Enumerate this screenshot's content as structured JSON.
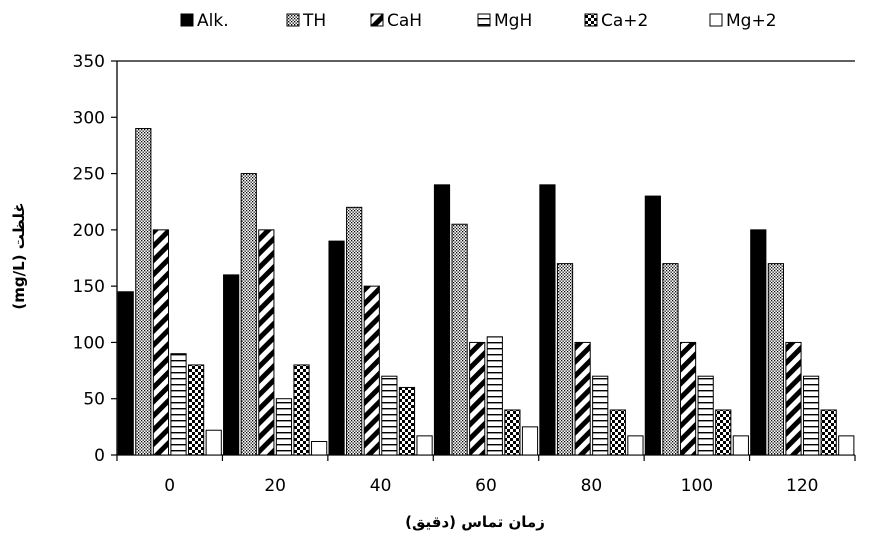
{
  "chart_data": {
    "type": "bar",
    "xlabel": "زمان تماس (دقیق)",
    "ylabel": "(mg/L) غلظت",
    "ylim": [
      0,
      350
    ],
    "yticks": [
      0,
      50,
      100,
      150,
      200,
      250,
      300,
      350
    ],
    "categories": [
      "0",
      "20",
      "40",
      "60",
      "80",
      "100",
      "120"
    ],
    "legend_position": "top",
    "grid": false,
    "series": [
      {
        "name": "Alk.",
        "pattern": "solid",
        "values": [
          145,
          160,
          190,
          240,
          240,
          230,
          200
        ]
      },
      {
        "name": "TH",
        "pattern": "dots",
        "values": [
          290,
          250,
          220,
          205,
          170,
          170,
          170
        ]
      },
      {
        "name": "CaH",
        "pattern": "wide-diagonal",
        "values": [
          200,
          200,
          150,
          100,
          100,
          100,
          100
        ]
      },
      {
        "name": "MgH",
        "pattern": "horizontal",
        "values": [
          90,
          50,
          70,
          105,
          70,
          70,
          70
        ]
      },
      {
        "name": "Ca+2",
        "pattern": "checker",
        "values": [
          80,
          80,
          60,
          40,
          40,
          40,
          40
        ]
      },
      {
        "name": "Mg+2",
        "pattern": "hollow",
        "values": [
          22,
          12,
          17,
          25,
          17,
          17,
          17
        ]
      }
    ]
  }
}
